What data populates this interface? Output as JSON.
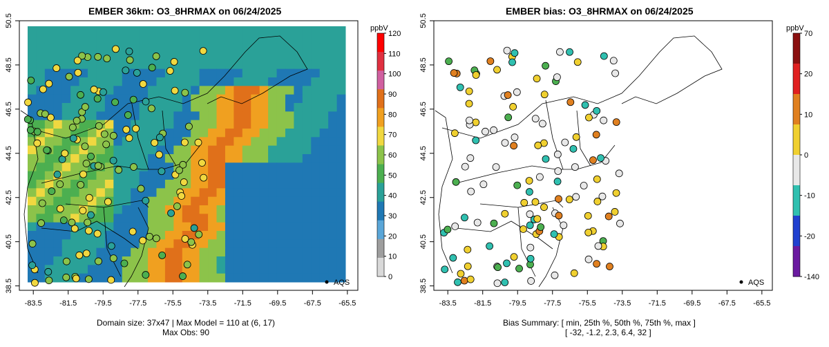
{
  "left_panel": {
    "title": "EMBER 36km: O3_8HRMAX on 06/24/2025",
    "unit": "ppbV",
    "colorbar_ticks": [
      "0",
      "10",
      "20",
      "30",
      "40",
      "50",
      "60",
      "70",
      "80",
      "90",
      "100",
      "110",
      "120"
    ],
    "legend_label": "AQS",
    "caption_line1": "Domain size: 37x47 | Max Model = 110 at (6, 17)",
    "caption_line2": "Max Obs: 90"
  },
  "right_panel": {
    "title": "EMBER bias: O3_8HRMAX on 06/24/2025",
    "unit": "ppbV",
    "colorbar_ticks": [
      "-140",
      "-20",
      "-10",
      "0",
      "10",
      "20",
      "70"
    ],
    "legend_label": "AQS",
    "caption_line1": "Bias Summary: [ min, 25th %, 50th %, 75th %, max ]",
    "caption_line2": "[ -32,   -1.2,   2.3,   6.4,   32 ]"
  },
  "x_ticks": [
    "-83.5",
    "-81.5",
    "-79.5",
    "-77.5",
    "-75.5",
    "-73.5",
    "-71.5",
    "-69.5",
    "-67.5",
    "-65.5"
  ],
  "y_ticks": [
    "38.5",
    "40.5",
    "42.5",
    "44.5",
    "46.5",
    "48.5",
    "50.5"
  ],
  "map_extent": {
    "lon": [
      -84.3,
      -64.9
    ],
    "lat": [
      38.3,
      50.5
    ]
  },
  "colors": {
    "left_scale": [
      "#d9d9d9",
      "#9e9e9e",
      "#5aa6d8",
      "#1f78b4",
      "#2aa198",
      "#4caf50",
      "#8cc34a",
      "#f0d840",
      "#f0a020",
      "#e0701a",
      "#d060a0",
      "#e03040",
      "#ff0000"
    ],
    "right_scale": [
      "#6a1aa0",
      "#2040d0",
      "#30c0b0",
      "#e8e8e8",
      "#f0d030",
      "#e08020",
      "#e02020",
      "#8b1010"
    ]
  }
}
